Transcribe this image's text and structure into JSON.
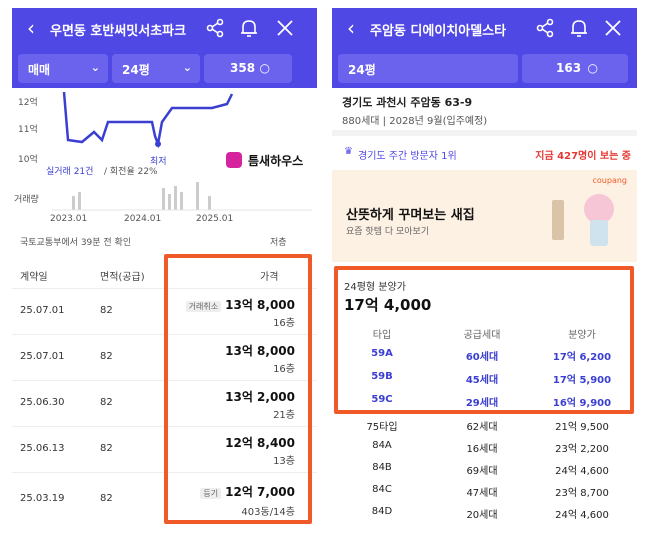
{
  "left": {
    "header": {
      "title": "우면동 호반써밋서초파크"
    },
    "filters": {
      "trade": "매매",
      "size": "24평",
      "count": "358"
    },
    "chart": {
      "y_ticks": [
        "12억",
        "11억",
        "10억"
      ],
      "x_ticks": [
        "2023.01",
        "2024.01",
        "2025.01"
      ],
      "summary_trades": "실거래 21건",
      "summary_recovery": "/ 회전율 22%",
      "low_label": "최저",
      "volume_label": "거래량",
      "source": "국토교통부에서 39분 전 확인",
      "low_legend": "저층",
      "watermark": "틈새하우스"
    },
    "columns": {
      "date": "계약일",
      "area": "면적(공급)",
      "price": "가격"
    },
    "rows": [
      {
        "date": "25.07.01",
        "area": "82",
        "tag": "거래취소",
        "price": "13억 8,000",
        "floor": "16층"
      },
      {
        "date": "25.07.01",
        "area": "82",
        "tag": "",
        "price": "13억 8,000",
        "floor": "16층"
      },
      {
        "date": "25.06.30",
        "area": "82",
        "tag": "",
        "price": "13억 2,000",
        "floor": "21층"
      },
      {
        "date": "25.06.13",
        "area": "82",
        "tag": "",
        "price": "12억 8,400",
        "floor": "13층"
      },
      {
        "date": "25.03.19",
        "area": "82",
        "tag": "등기",
        "price": "12억 7,000",
        "floor": "403동/14층"
      }
    ]
  },
  "right": {
    "header": {
      "title": "주암동 디에이치아델스타"
    },
    "filters": {
      "size": "24평",
      "count": "163"
    },
    "address": "경기도 과천시 주암동 63-9",
    "info": "880세대  |  2028년 9월(입주예정)",
    "visitor_rank": "경기도 주간 방문자 1위",
    "viewers": "지금 427명이 보는 중",
    "ad": {
      "brand": "coupang",
      "title": "산뜻하게 꾸며보는 새집",
      "sub": "요즘 핫템 다 모아보기"
    },
    "sale_label": "24평형 분양가",
    "sale_price": "17억 4,000",
    "table_headers": {
      "type": "타입",
      "households": "공급세대",
      "price": "분양가"
    },
    "highlight_rows": [
      {
        "type": "59A",
        "households": "60세대",
        "price": "17억 6,200"
      },
      {
        "type": "59B",
        "households": "45세대",
        "price": "17억 5,900"
      },
      {
        "type": "59C",
        "households": "29세대",
        "price": "16억 9,900"
      }
    ],
    "rows": [
      {
        "type": "75타입",
        "households": "62세대",
        "price": "21억 9,500"
      },
      {
        "type": "84A",
        "households": "16세대",
        "price": "23억 2,200"
      },
      {
        "type": "84B",
        "households": "69세대",
        "price": "24억 4,600"
      },
      {
        "type": "84C",
        "households": "47세대",
        "price": "23억 8,700"
      },
      {
        "type": "84D",
        "households": "20세대",
        "price": "24억 4,600"
      }
    ]
  }
}
